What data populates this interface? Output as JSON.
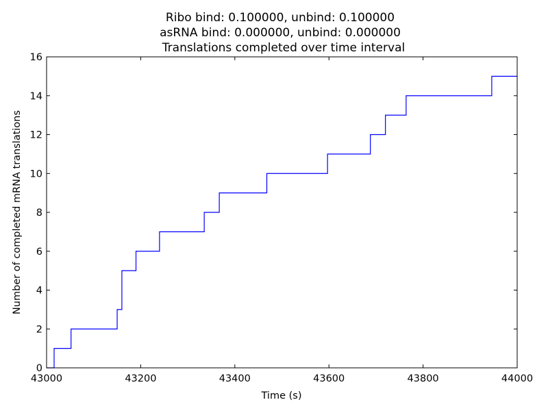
{
  "chart_data": {
    "type": "line",
    "step": true,
    "title_lines": [
      "Ribo bind: 0.100000, unbind: 0.100000",
      "asRNA bind: 0.000000, unbind: 0.000000",
      "Translations completed over time interval"
    ],
    "xlabel": "Time (s)",
    "ylabel": "Number of completed mRNA translations",
    "xlim": [
      43000,
      44000
    ],
    "ylim": [
      0,
      16
    ],
    "xticks": [
      43000,
      43200,
      43400,
      43600,
      43800,
      44000
    ],
    "yticks": [
      0,
      2,
      4,
      6,
      8,
      10,
      12,
      14,
      16
    ],
    "grid": false,
    "line_color": "#0000ff",
    "series": [
      {
        "x": [
          43016,
          43016,
          43052,
          43052,
          43150,
          43150,
          43160,
          43160,
          43190,
          43190,
          43240,
          43240,
          43335,
          43335,
          43367,
          43367,
          43468,
          43468,
          43597,
          43597,
          43688,
          43688,
          43720,
          43720,
          43764,
          43764,
          43946,
          43946,
          44000
        ],
        "y": [
          0,
          1,
          1,
          2,
          2,
          3,
          3,
          5,
          5,
          6,
          6,
          7,
          7,
          8,
          8,
          9,
          9,
          10,
          10,
          11,
          11,
          12,
          12,
          13,
          13,
          14,
          14,
          15,
          15
        ]
      }
    ]
  }
}
